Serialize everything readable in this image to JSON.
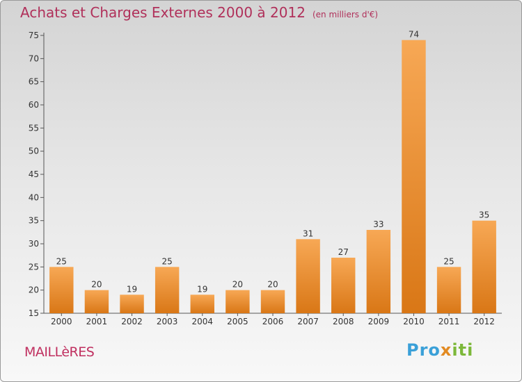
{
  "header": {
    "title": "Achats et Charges Externes 2000 à 2012",
    "unit": "(en milliers d'€)"
  },
  "commune": "MAILLèRES",
  "logo": {
    "text": "Proxiti",
    "part1": "Pro",
    "part2": "x",
    "part3": "iti"
  },
  "colors": {
    "bar_light": "#f7a855",
    "bar_dark": "#d97716",
    "title": "#b0305a"
  },
  "chart_data": {
    "type": "bar",
    "categories": [
      "2000",
      "2001",
      "2002",
      "2003",
      "2004",
      "2005",
      "2006",
      "2007",
      "2008",
      "2009",
      "2010",
      "2011",
      "2012"
    ],
    "values": [
      25,
      20,
      19,
      25,
      19,
      20,
      20,
      31,
      27,
      33,
      74,
      25,
      35
    ],
    "ylim": [
      15,
      75
    ],
    "yticks": [
      15,
      20,
      25,
      30,
      35,
      40,
      45,
      50,
      55,
      60,
      65,
      70,
      75
    ],
    "grid": false
  }
}
